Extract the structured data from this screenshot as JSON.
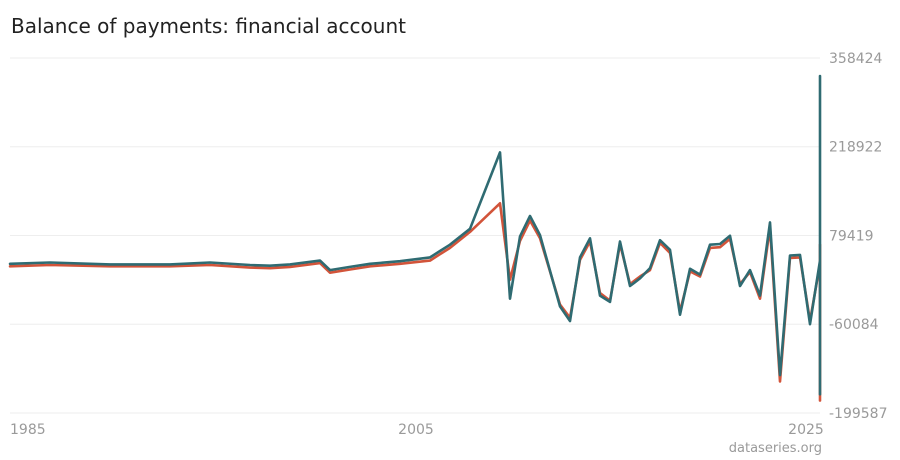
{
  "title": "Balance of payments: financial account",
  "credit": "dataseries.org",
  "colors": {
    "seriesA": "#d2543a",
    "seriesB": "#2f6b72",
    "grid": "#eeeeee",
    "text": "#9a9a9a"
  },
  "chart_data": {
    "type": "line",
    "title": "Balance of payments: financial account",
    "y_ticks": [
      358424,
      218922,
      79419,
      -60084,
      -199587
    ],
    "x_ticks": [
      "1985",
      "2005",
      "2025"
    ],
    "xlim": [
      1985,
      2025.5
    ],
    "ylim": [
      -199587,
      358424
    ],
    "y_axis_position": "right",
    "grid": true,
    "series": [
      {
        "color": "#d2543a",
        "points": [
          [
            1985,
            31000
          ],
          [
            1987,
            33000
          ],
          [
            1990,
            31000
          ],
          [
            1991.5,
            31000
          ],
          [
            1993,
            31000
          ],
          [
            1995,
            33000
          ],
          [
            1997,
            29000
          ],
          [
            1998,
            28000
          ],
          [
            1999,
            30000
          ],
          [
            2000.5,
            36000
          ],
          [
            2001,
            21000
          ],
          [
            2002,
            26000
          ],
          [
            2003,
            31000
          ],
          [
            2004.5,
            35000
          ],
          [
            2006,
            40000
          ],
          [
            2006.5,
            50000
          ],
          [
            2007,
            60000
          ],
          [
            2008,
            85000
          ],
          [
            2009.5,
            130000
          ],
          [
            2010,
            10000
          ],
          [
            2010.5,
            71000
          ],
          [
            2011,
            103000
          ],
          [
            2011.5,
            75000
          ],
          [
            2012.5,
            -29000
          ],
          [
            2013,
            -50000
          ],
          [
            2013.5,
            41000
          ],
          [
            2014,
            70000
          ],
          [
            2014.5,
            -11000
          ],
          [
            2015,
            -23000
          ],
          [
            2015.5,
            66000
          ],
          [
            2016,
            3000
          ],
          [
            2016.5,
            15000
          ],
          [
            2017,
            25000
          ],
          [
            2017.5,
            68000
          ],
          [
            2018,
            52000
          ],
          [
            2018.5,
            -40000
          ],
          [
            2019,
            23000
          ],
          [
            2019.5,
            15000
          ],
          [
            2020,
            60000
          ],
          [
            2020.5,
            61000
          ],
          [
            2021,
            74000
          ],
          [
            2021.5,
            3000
          ],
          [
            2022,
            22000
          ],
          [
            2022.5,
            -20000
          ],
          [
            2023,
            92000
          ],
          [
            2023.5,
            -150000
          ],
          [
            2024,
            44000
          ],
          [
            2024.5,
            45000
          ],
          [
            2025,
            -55000
          ],
          [
            2025.5,
            35000
          ],
          [
            2026,
            60000
          ],
          [
            2026.5,
            -180000
          ],
          [
            2027,
            65000
          ],
          [
            2027.5,
            -30000
          ]
        ]
      },
      {
        "color": "#2f6b72",
        "points": [
          [
            1985,
            35000
          ],
          [
            1987,
            37000
          ],
          [
            1990,
            34000
          ],
          [
            1991.5,
            34000
          ],
          [
            1993,
            34000
          ],
          [
            1995,
            37000
          ],
          [
            1997,
            33000
          ],
          [
            1998,
            32000
          ],
          [
            1999,
            34000
          ],
          [
            2000.5,
            40000
          ],
          [
            2001,
            25000
          ],
          [
            2002,
            30000
          ],
          [
            2003,
            35000
          ],
          [
            2004.5,
            39000
          ],
          [
            2006,
            45000
          ],
          [
            2006.5,
            55000
          ],
          [
            2007,
            65000
          ],
          [
            2008,
            90000
          ],
          [
            2009.5,
            210000
          ],
          [
            2010,
            -20000
          ],
          [
            2010.5,
            78000
          ],
          [
            2011,
            110000
          ],
          [
            2011.5,
            80000
          ],
          [
            2012.5,
            -32000
          ],
          [
            2013,
            -55000
          ],
          [
            2013.5,
            45000
          ],
          [
            2014,
            75000
          ],
          [
            2014.5,
            -15000
          ],
          [
            2015,
            -25000
          ],
          [
            2015.5,
            70000
          ],
          [
            2016,
            0
          ],
          [
            2016.5,
            12000
          ],
          [
            2017,
            28000
          ],
          [
            2017.5,
            72000
          ],
          [
            2018,
            57000
          ],
          [
            2018.5,
            -45000
          ],
          [
            2019,
            27000
          ],
          [
            2019.5,
            18000
          ],
          [
            2020,
            65000
          ],
          [
            2020.5,
            66000
          ],
          [
            2021,
            79000
          ],
          [
            2021.5,
            0
          ],
          [
            2022,
            25000
          ],
          [
            2022.5,
            -15000
          ],
          [
            2023,
            100000
          ],
          [
            2023.5,
            -140000
          ],
          [
            2024,
            48000
          ],
          [
            2024.5,
            49000
          ],
          [
            2025,
            -60000
          ],
          [
            2025.5,
            40000
          ],
          [
            2026,
            330000
          ],
          [
            2026.5,
            -170000
          ],
          [
            2027,
            70000
          ],
          [
            2027.5,
            -35000
          ]
        ]
      }
    ]
  }
}
